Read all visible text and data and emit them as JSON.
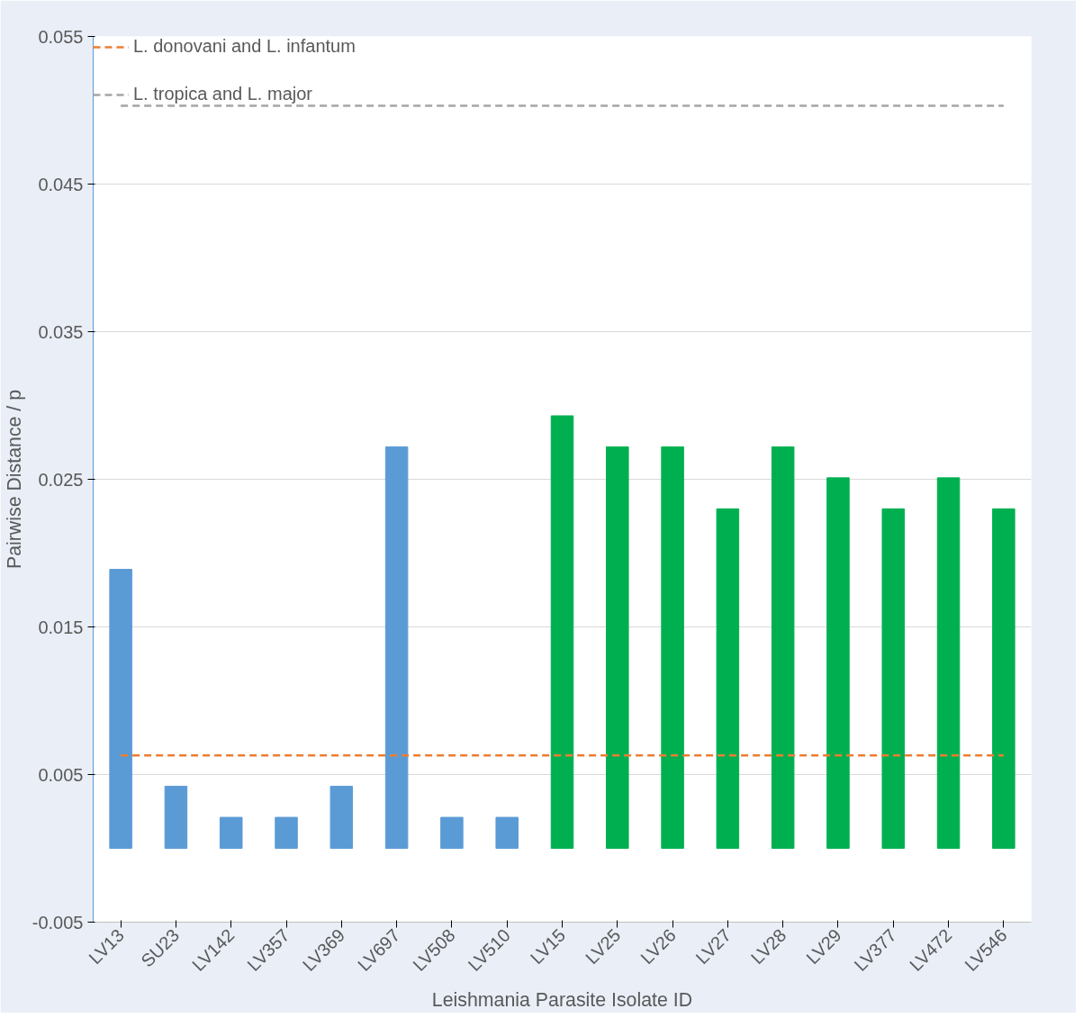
{
  "chart_data": {
    "type": "bar",
    "xlabel": "Leishmania Parasite Isolate ID",
    "ylabel": "Pairwise Distance / p",
    "categories": [
      "LV13",
      "SU23",
      "LV142",
      "LV357",
      "LV369",
      "LV697",
      "LV508",
      "LV510",
      "LV15",
      "LV25",
      "LV26",
      "LV27",
      "LV28",
      "LV29",
      "LV377",
      "LV472",
      "LV546"
    ],
    "values": [
      0.0189,
      0.0042,
      0.0021,
      0.0021,
      0.0042,
      0.0272,
      0.0021,
      0.0021,
      0.0293,
      0.0272,
      0.0272,
      0.023,
      0.0272,
      0.0251,
      0.023,
      0.0251,
      0.023
    ],
    "colors": [
      "#5b9bd5",
      "#5b9bd5",
      "#5b9bd5",
      "#5b9bd5",
      "#5b9bd5",
      "#5b9bd5",
      "#5b9bd5",
      "#5b9bd5",
      "#00b050",
      "#00b050",
      "#00b050",
      "#00b050",
      "#00b050",
      "#00b050",
      "#00b050",
      "#00b050",
      "#00b050"
    ],
    "ylim": [
      -0.005,
      0.055
    ],
    "yticks": [
      -0.005,
      0.005,
      0.015,
      0.025,
      0.035,
      0.045,
      0.055
    ],
    "ref_lines": [
      {
        "axis": "y",
        "value": 0.0063,
        "label": "L. donovani and L. infantum",
        "color": "#ed7d31",
        "line_style": "dashed"
      },
      {
        "axis": "y",
        "value": 0.0503,
        "label": "L. tropica and L. major",
        "color": "#a5a5a5",
        "line_style": "dashed"
      }
    ],
    "grid": "y",
    "legend": "top left"
  }
}
